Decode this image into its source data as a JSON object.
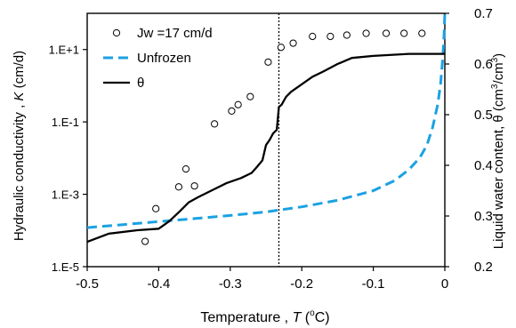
{
  "chart_data": {
    "type": "scatter",
    "xlabel_prefix": "Temperature , ",
    "xlabel_var": "T",
    "xlabel_unit_open": " (",
    "xlabel_degree": "o",
    "xlabel_unit_close": "C)",
    "ylabel_left_prefix": "Hydraulic conductivity , ",
    "ylabel_left_var": "K",
    "ylabel_left_unit": " (cm/d)",
    "ylabel_right_prefix": "Liquid water content, θ (cm",
    "ylabel_right_sup1": "3",
    "ylabel_right_mid": "/cm",
    "ylabel_right_sup2": "3",
    "ylabel_right_close": ")",
    "xlim": [
      -0.5,
      0
    ],
    "ylim_left_log10": [
      -5,
      2
    ],
    "ylim_right": [
      0.2,
      0.7
    ],
    "x_ticks": [
      -0.5,
      -0.4,
      -0.3,
      -0.2,
      -0.1,
      0
    ],
    "x_tick_labels": [
      "-0.5",
      "-0.4",
      "-0.3",
      "-0.2",
      "-0.1",
      "0"
    ],
    "y_left_ticks": [
      -5,
      -3,
      -1,
      1
    ],
    "y_left_tick_labels": [
      "1.E-5",
      "1.E-3",
      "1.E-1",
      "1.E+1"
    ],
    "y_right_ticks": [
      0.2,
      0.3,
      0.4,
      0.5,
      0.6,
      0.7
    ],
    "y_right_tick_labels": [
      "0.2",
      "0.3",
      "0.4",
      "0.5",
      "0.6",
      "0.7"
    ],
    "vertical_reference_x": -0.232,
    "legend_position": "top-left",
    "series": [
      {
        "name": "Jw =17 cm/d",
        "axis": "left",
        "style": "open-circle",
        "color": "#000000",
        "x": [
          -0.419,
          -0.404,
          -0.372,
          -0.362,
          -0.35,
          -0.322,
          -0.298,
          -0.289,
          -0.272,
          -0.247,
          -0.229,
          -0.212,
          -0.185,
          -0.16,
          -0.137,
          -0.11,
          -0.082,
          -0.057,
          -0.032
        ],
        "K": [
          5e-05,
          0.0004,
          0.0016,
          0.005,
          0.0017,
          0.088,
          0.2,
          0.3,
          0.5,
          4.5,
          11.5,
          15,
          23,
          23,
          25,
          28,
          28,
          28,
          28
        ]
      },
      {
        "name": "Unfrozen",
        "axis": "right",
        "style": "dashed-line",
        "color": "#1ba1e2",
        "x": [
          -0.5,
          -0.45,
          -0.4,
          -0.35,
          -0.3,
          -0.25,
          -0.2,
          -0.15,
          -0.1,
          -0.07,
          -0.05,
          -0.035,
          -0.025,
          -0.017,
          -0.01,
          -0.006,
          -0.003,
          -0.001,
          0
        ],
        "theta": [
          0.277,
          0.283,
          0.289,
          0.295,
          0.301,
          0.308,
          0.318,
          0.331,
          0.35,
          0.37,
          0.392,
          0.415,
          0.44,
          0.475,
          0.52,
          0.56,
          0.61,
          0.66,
          0.7
        ]
      },
      {
        "name": "θ",
        "axis": "right",
        "style": "solid-line",
        "color": "#000000",
        "x": [
          -0.5,
          -0.47,
          -0.43,
          -0.4,
          -0.385,
          -0.37,
          -0.358,
          -0.345,
          -0.325,
          -0.305,
          -0.285,
          -0.27,
          -0.262,
          -0.255,
          -0.25,
          -0.245,
          -0.24,
          -0.235,
          -0.232,
          -0.228,
          -0.222,
          -0.215,
          -0.2,
          -0.185,
          -0.17,
          -0.15,
          -0.13,
          -0.1,
          -0.05,
          -0.02,
          0
        ],
        "theta": [
          0.249,
          0.265,
          0.272,
          0.275,
          0.29,
          0.31,
          0.327,
          0.337,
          0.351,
          0.365,
          0.375,
          0.385,
          0.398,
          0.41,
          0.44,
          0.45,
          0.463,
          0.47,
          0.515,
          0.52,
          0.535,
          0.545,
          0.56,
          0.575,
          0.585,
          0.6,
          0.612,
          0.616,
          0.62,
          0.62,
          0.62
        ]
      }
    ]
  }
}
